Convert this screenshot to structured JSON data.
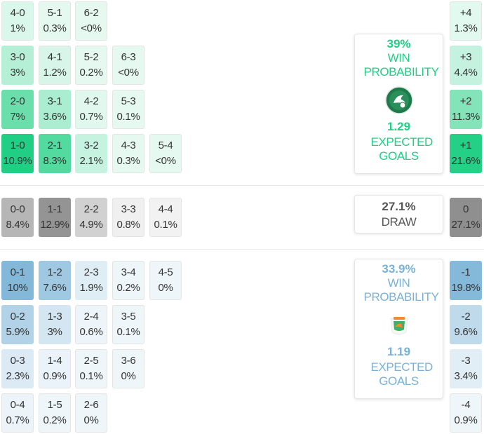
{
  "colors": {
    "home": "#1fcf83",
    "away": "#79b2d6",
    "draw": "#8f8f8f"
  },
  "home_scores": [
    {
      "score": "4-0",
      "pct": "1%",
      "pv": 1
    },
    {
      "score": "5-1",
      "pct": "0.3%",
      "pv": 0.3
    },
    {
      "score": "6-2",
      "pct": "<0%",
      "pv": 0
    },
    {
      "score": "3-0",
      "pct": "3%",
      "pv": 3
    },
    {
      "score": "4-1",
      "pct": "1.2%",
      "pv": 1.2
    },
    {
      "score": "5-2",
      "pct": "0.2%",
      "pv": 0.2
    },
    {
      "score": "6-3",
      "pct": "<0%",
      "pv": 0
    },
    {
      "score": "2-0",
      "pct": "7%",
      "pv": 7
    },
    {
      "score": "3-1",
      "pct": "3.6%",
      "pv": 3.6
    },
    {
      "score": "4-2",
      "pct": "0.7%",
      "pv": 0.7
    },
    {
      "score": "5-3",
      "pct": "0.1%",
      "pv": 0.1
    },
    {
      "score": "1-0",
      "pct": "10.9%",
      "pv": 10.9
    },
    {
      "score": "2-1",
      "pct": "8.3%",
      "pv": 8.3
    },
    {
      "score": "3-2",
      "pct": "2.1%",
      "pv": 2.1
    },
    {
      "score": "4-3",
      "pct": "0.3%",
      "pv": 0.3
    },
    {
      "score": "5-4",
      "pct": "<0%",
      "pv": 0
    }
  ],
  "draw_scores": [
    {
      "score": "0-0",
      "pct": "8.4%",
      "pv": 8.4
    },
    {
      "score": "1-1",
      "pct": "12.9%",
      "pv": 12.9
    },
    {
      "score": "2-2",
      "pct": "4.9%",
      "pv": 4.9
    },
    {
      "score": "3-3",
      "pct": "0.8%",
      "pv": 0.8
    },
    {
      "score": "4-4",
      "pct": "0.1%",
      "pv": 0.1
    }
  ],
  "away_scores": [
    {
      "score": "0-1",
      "pct": "10%",
      "pv": 10
    },
    {
      "score": "1-2",
      "pct": "7.6%",
      "pv": 7.6
    },
    {
      "score": "2-3",
      "pct": "1.9%",
      "pv": 1.9
    },
    {
      "score": "3-4",
      "pct": "0.2%",
      "pv": 0.2
    },
    {
      "score": "4-5",
      "pct": "0%",
      "pv": 0
    },
    {
      "score": "0-2",
      "pct": "5.9%",
      "pv": 5.9
    },
    {
      "score": "1-3",
      "pct": "3%",
      "pv": 3
    },
    {
      "score": "2-4",
      "pct": "0.6%",
      "pv": 0.6
    },
    {
      "score": "3-5",
      "pct": "0.1%",
      "pv": 0.1
    },
    {
      "score": "0-3",
      "pct": "2.3%",
      "pv": 2.3
    },
    {
      "score": "1-4",
      "pct": "0.9%",
      "pv": 0.9
    },
    {
      "score": "2-5",
      "pct": "0.1%",
      "pv": 0.1
    },
    {
      "score": "3-6",
      "pct": "0%",
      "pv": 0
    },
    {
      "score": "0-4",
      "pct": "0.7%",
      "pv": 0.7
    },
    {
      "score": "1-5",
      "pct": "0.2%",
      "pv": 0.2
    },
    {
      "score": "2-6",
      "pct": "0%",
      "pv": 0
    }
  ],
  "margins": [
    {
      "label": "+4",
      "pct": "1.3%",
      "pv": 1.3,
      "side": "home"
    },
    {
      "label": "+3",
      "pct": "4.4%",
      "pv": 4.4,
      "side": "home"
    },
    {
      "label": "+2",
      "pct": "11.3%",
      "pv": 11.3,
      "side": "home"
    },
    {
      "label": "+1",
      "pct": "21.6%",
      "pv": 21.6,
      "side": "home"
    },
    {
      "label": "0",
      "pct": "27.1%",
      "pv": 27.1,
      "side": "draw"
    },
    {
      "label": "-1",
      "pct": "19.8%",
      "pv": 19.8,
      "side": "away"
    },
    {
      "label": "-2",
      "pct": "9.6%",
      "pv": 9.6,
      "side": "away"
    },
    {
      "label": "-3",
      "pct": "3.4%",
      "pv": 3.4,
      "side": "away"
    },
    {
      "label": "-4",
      "pct": "0.9%",
      "pv": 0.9,
      "side": "away"
    }
  ],
  "home_card": {
    "win_pct": "39%",
    "win_label": "WIN PROBABILITY",
    "xg": "1.29",
    "xg_label": "EXPECTED GOALS",
    "logo_icon": "team-crest-icon"
  },
  "draw_card": {
    "pct": "27.1%",
    "label": "DRAW"
  },
  "away_card": {
    "win_pct": "33.9%",
    "win_label": "WIN PROBABILITY",
    "xg": "1.19",
    "xg_label": "EXPECTED GOALS",
    "logo_icon": "team-crest-icon"
  }
}
